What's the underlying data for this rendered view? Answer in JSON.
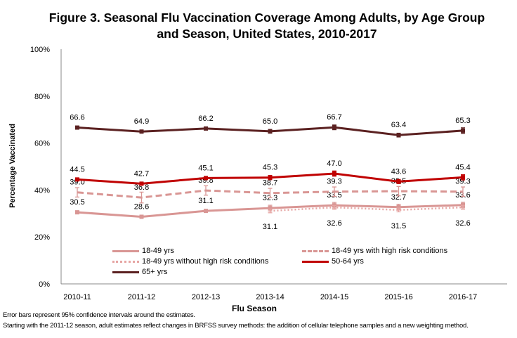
{
  "chart_data": {
    "type": "line",
    "title": "Figure 3. Seasonal Flu Vaccination Coverage Among Adults, by Age Group and Season, United States, 2010-2017",
    "xlabel": "Flu Season",
    "ylabel": "Percentage Vaccinated",
    "categories": [
      "2010-11",
      "2011-12",
      "2012-13",
      "2013-14",
      "2014-15",
      "2015-16",
      "2016-17"
    ],
    "ylim": [
      0,
      100
    ],
    "yticks": [
      "0%",
      "20%",
      "40%",
      "60%",
      "80%",
      "100%"
    ],
    "grid": false,
    "legend_placement": "bottom",
    "error_bars": true,
    "series": [
      {
        "name": "18-49 yrs",
        "style": "solid",
        "color": "#d99694",
        "values": [
          30.5,
          28.6,
          31.1,
          32.3,
          33.5,
          32.7,
          33.6
        ],
        "labels": [
          "30.5",
          "28.6",
          "31.1",
          "32.3",
          "33.5",
          "32.7",
          "33.6"
        ],
        "ci": [
          0.6,
          0.6,
          0.6,
          1.2,
          1.2,
          1.2,
          1.2
        ]
      },
      {
        "name": "18-49 yrs with high risk conditions",
        "style": "dashed",
        "color": "#d99694",
        "values": [
          39.0,
          36.8,
          39.8,
          38.7,
          39.3,
          39.5,
          39.3
        ],
        "labels": [
          "39.0",
          "36.8",
          "39.8",
          "38.7",
          "39.3",
          "39.5",
          "39.3"
        ],
        "ci": [
          2.0,
          2.3,
          2.0,
          2.0,
          2.0,
          2.0,
          2.0
        ]
      },
      {
        "name": "18-49 yrs without high risk conditions",
        "style": "dotted",
        "color": "#e6a5a3",
        "values": [
          null,
          null,
          null,
          31.1,
          32.6,
          31.5,
          32.6
        ],
        "labels": [
          "",
          "",
          "",
          "31.1",
          "32.6",
          "31.5",
          "32.6"
        ],
        "ci": [
          0,
          0,
          0,
          0.8,
          0.8,
          0.8,
          0.8
        ]
      },
      {
        "name": "50-64 yrs",
        "style": "solid",
        "color": "#c00000",
        "values": [
          44.5,
          42.7,
          45.1,
          45.3,
          47.0,
          43.6,
          45.4
        ],
        "labels": [
          "44.5",
          "42.7",
          "45.1",
          "45.3",
          "47.0",
          "43.6",
          "45.4"
        ],
        "ci": [
          0.6,
          0.6,
          0.6,
          0.9,
          1.1,
          0.9,
          1.1
        ]
      },
      {
        "name": "65+ yrs",
        "style": "solid",
        "color": "#5b2121",
        "values": [
          66.6,
          64.9,
          66.2,
          65.0,
          66.7,
          63.4,
          65.3
        ],
        "labels": [
          "66.6",
          "64.9",
          "66.2",
          "65.0",
          "66.7",
          "63.4",
          "65.3"
        ],
        "ci": [
          0.5,
          0.5,
          0.5,
          0.8,
          1.0,
          0.8,
          1.2
        ]
      }
    ]
  },
  "footnotes": [
    "Error bars represent 95% confidence intervals around the estimates.",
    "Starting with the 2011-12 season, adult estimates reflect changes in BRFSS survey methods: the addition of cellular telephone samples and a new weighting method."
  ]
}
